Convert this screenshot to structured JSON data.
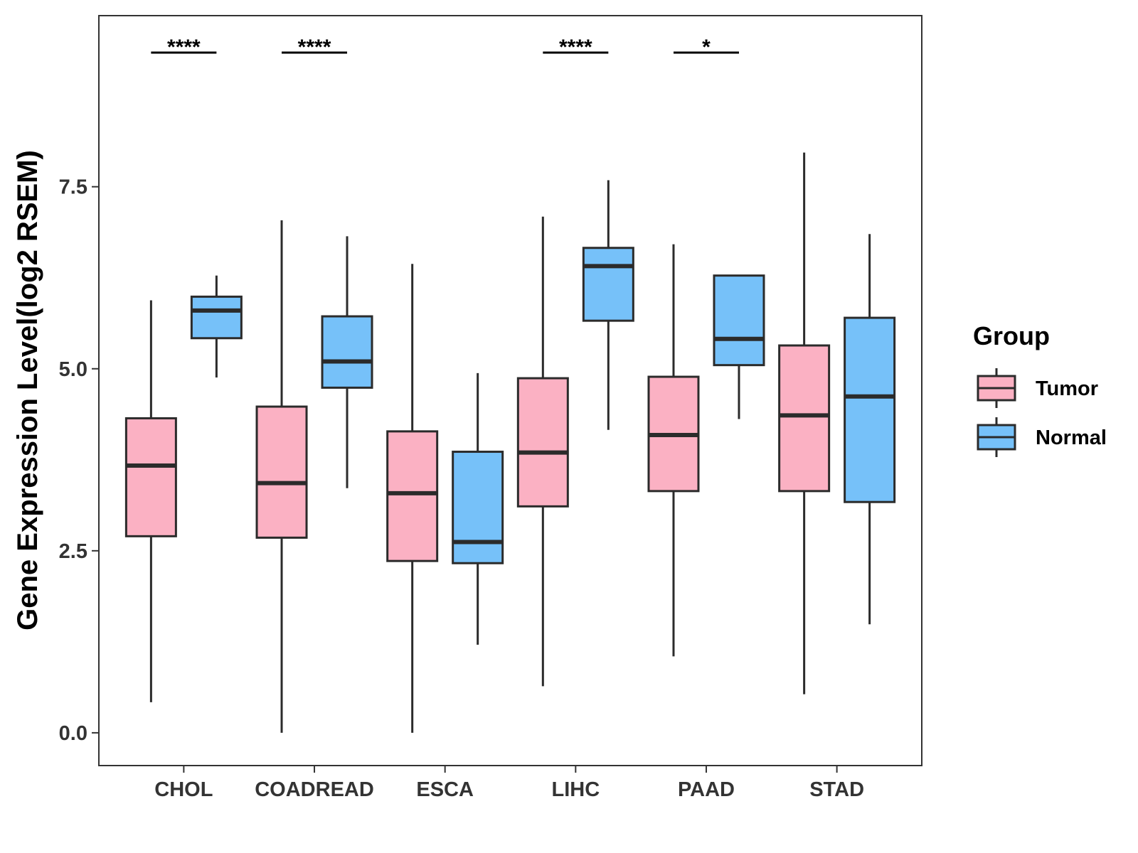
{
  "chart_data": {
    "type": "box",
    "title": "",
    "xlabel": "",
    "ylabel": "Gene Expression Level(log2 RSEM)",
    "ylim": [
      -0.45,
      9.85
    ],
    "yticks": [
      0.0,
      2.5,
      5.0,
      7.5
    ],
    "ytick_labels": [
      "0.0",
      "2.5",
      "5.0",
      "7.5"
    ],
    "grid": false,
    "categories": [
      "CHOL",
      "COADREAD",
      "ESCA",
      "LIHC",
      "PAAD",
      "STAD"
    ],
    "legend": {
      "title": "Group",
      "position": "right",
      "entries": [
        {
          "name": "Tumor",
          "color": "#FBB1C3"
        },
        {
          "name": "Normal",
          "color": "#76C1F9"
        }
      ]
    },
    "series": [
      {
        "name": "Tumor",
        "color": "#FBB1C3",
        "boxes": [
          {
            "category": "CHOL",
            "min": 0.42,
            "q1": 2.7,
            "median": 3.67,
            "q3": 4.32,
            "max": 5.94
          },
          {
            "category": "COADREAD",
            "min": 0.0,
            "q1": 2.68,
            "median": 3.43,
            "q3": 4.48,
            "max": 7.04
          },
          {
            "category": "ESCA",
            "min": 0.0,
            "q1": 2.36,
            "median": 3.29,
            "q3": 4.14,
            "max": 6.44
          },
          {
            "category": "LIHC",
            "min": 0.64,
            "q1": 3.11,
            "median": 3.85,
            "q3": 4.87,
            "max": 7.09
          },
          {
            "category": "PAAD",
            "min": 1.05,
            "q1": 3.32,
            "median": 4.09,
            "q3": 4.89,
            "max": 6.71
          },
          {
            "category": "STAD",
            "min": 0.53,
            "q1": 3.32,
            "median": 4.36,
            "q3": 5.32,
            "max": 7.97
          }
        ]
      },
      {
        "name": "Normal",
        "color": "#76C1F9",
        "boxes": [
          {
            "category": "CHOL",
            "min": 4.88,
            "q1": 5.42,
            "median": 5.8,
            "q3": 5.99,
            "max": 6.28
          },
          {
            "category": "COADREAD",
            "min": 3.36,
            "q1": 4.74,
            "median": 5.1,
            "q3": 5.72,
            "max": 6.82
          },
          {
            "category": "ESCA",
            "min": 1.21,
            "q1": 2.33,
            "median": 2.62,
            "q3": 3.86,
            "max": 4.94
          },
          {
            "category": "LIHC",
            "min": 4.16,
            "q1": 5.66,
            "median": 6.41,
            "q3": 6.66,
            "max": 7.59
          },
          {
            "category": "PAAD",
            "min": 4.31,
            "q1": 5.05,
            "median": 5.41,
            "q3": 6.28,
            "max": 6.28
          },
          {
            "category": "STAD",
            "min": 1.49,
            "q1": 3.17,
            "median": 4.62,
            "q3": 5.7,
            "max": 6.85
          }
        ]
      }
    ],
    "significance": [
      {
        "category": "CHOL",
        "label": "****"
      },
      {
        "category": "COADREAD",
        "label": "****"
      },
      {
        "category": "ESCA",
        "label": ""
      },
      {
        "category": "LIHC",
        "label": "****"
      },
      {
        "category": "PAAD",
        "label": "*"
      },
      {
        "category": "STAD",
        "label": ""
      }
    ]
  }
}
